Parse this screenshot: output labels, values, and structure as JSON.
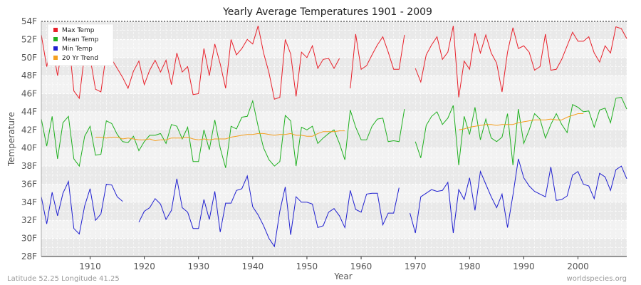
{
  "chart_data": {
    "type": "line",
    "title": "Yearly Average Temperatures 1901 - 2009",
    "xlabel": "Year",
    "ylabel": "Temperature",
    "xlim": [
      1901,
      2009
    ],
    "ylim": [
      28,
      54
    ],
    "x_ticks": [
      1910,
      1920,
      1930,
      1940,
      1950,
      1960,
      1970,
      1980,
      1990,
      2000
    ],
    "y_ticks": [
      "28F",
      "30F",
      "32F",
      "34F",
      "36F",
      "38F",
      "40F",
      "42F",
      "44F",
      "46F",
      "48F",
      "50F",
      "52F",
      "54F"
    ],
    "grid": true,
    "legend_position": "top-left",
    "years_start": 1901,
    "series": [
      {
        "name": "Max Temp",
        "color": "#e8202a",
        "values": [
          52.5,
          49.0,
          51.5,
          48.0,
          51.6,
          52.2,
          46.3,
          45.5,
          50.5,
          50.0,
          46.5,
          46.2,
          50.5,
          49.8,
          48.8,
          47.8,
          46.6,
          48.5,
          49.6,
          47.0,
          48.6,
          49.7,
          48.4,
          49.7,
          47.0,
          50.5,
          48.4,
          49.0,
          45.9,
          46.0,
          51.0,
          48.0,
          51.5,
          49.3,
          46.6,
          52.0,
          50.3,
          51.0,
          52.0,
          51.5,
          53.5,
          50.5,
          48.3,
          45.4,
          45.6,
          52.0,
          50.4,
          45.7,
          50.6,
          50.0,
          51.3,
          48.8,
          49.8,
          49.9,
          48.8,
          49.9,
          null,
          46.6,
          52.6,
          48.7,
          49.1,
          50.3,
          51.4,
          52.3,
          50.6,
          48.7,
          48.7,
          52.5,
          null,
          48.8,
          47.3,
          50.3,
          51.4,
          52.3,
          49.8,
          50.6,
          53.5,
          45.6,
          49.6,
          48.7,
          52.7,
          50.5,
          52.5,
          50.5,
          49.4,
          46.2,
          50.6,
          53.3,
          51.0,
          51.3,
          50.6,
          48.6,
          49.0,
          52.6,
          48.6,
          48.7,
          49.8,
          51.3,
          52.8,
          51.8,
          51.8,
          52.3,
          50.5,
          49.5,
          51.3,
          50.5,
          53.4,
          53.2,
          52.1
        ]
      },
      {
        "name": "Mean Temp",
        "color": "#20b020",
        "values": [
          43.2,
          40.2,
          43.5,
          38.8,
          42.8,
          43.5,
          38.8,
          38.0,
          41.3,
          42.4,
          39.2,
          39.3,
          43.0,
          42.7,
          41.5,
          40.7,
          40.6,
          41.3,
          39.7,
          40.7,
          41.4,
          41.4,
          41.6,
          40.5,
          42.6,
          42.4,
          41.0,
          42.3,
          38.5,
          38.5,
          42.0,
          39.8,
          43.1,
          40.0,
          37.8,
          42.4,
          42.1,
          43.4,
          43.5,
          45.2,
          42.4,
          40.0,
          38.7,
          38.0,
          38.5,
          43.6,
          43.0,
          38.0,
          42.3,
          42.0,
          42.4,
          40.5,
          41.1,
          41.6,
          42.0,
          40.5,
          38.7,
          44.2,
          42.3,
          40.9,
          40.9,
          42.4,
          43.2,
          43.3,
          40.7,
          40.8,
          40.7,
          44.3,
          null,
          40.7,
          38.9,
          42.5,
          43.5,
          44.0,
          42.6,
          43.3,
          44.7,
          38.1,
          43.5,
          41.5,
          44.5,
          40.9,
          43.2,
          41.1,
          40.7,
          41.2,
          43.8,
          38.1,
          44.3,
          40.5,
          42.0,
          43.8,
          43.2,
          41.1,
          42.6,
          43.8,
          42.6,
          41.7,
          44.8,
          44.5,
          44.0,
          44.1,
          42.3,
          44.2,
          44.4,
          42.8,
          45.5,
          45.6,
          44.3
        ]
      },
      {
        "name": "Min Temp",
        "color": "#2020d0",
        "values": [
          34.6,
          31.6,
          35.1,
          32.5,
          35.0,
          36.3,
          31.1,
          30.5,
          33.6,
          35.5,
          32.0,
          32.7,
          36.0,
          35.9,
          34.6,
          34.1,
          null,
          null,
          31.8,
          33.0,
          33.4,
          34.4,
          33.8,
          32.1,
          33.1,
          36.6,
          33.4,
          32.9,
          31.1,
          31.1,
          34.3,
          32.1,
          35.2,
          30.7,
          33.9,
          33.9,
          35.3,
          35.5,
          36.9,
          33.5,
          32.6,
          31.4,
          30.0,
          29.1,
          33.0,
          35.7,
          30.4,
          34.6,
          34.0,
          34.0,
          33.8,
          31.2,
          31.4,
          32.9,
          33.3,
          32.5,
          31.2,
          35.3,
          33.2,
          32.9,
          34.9,
          35.0,
          35.0,
          31.5,
          32.8,
          32.8,
          35.6,
          null,
          32.8,
          30.6,
          34.6,
          35.0,
          35.4,
          35.2,
          35.3,
          36.2,
          30.6,
          35.4,
          34.3,
          36.7,
          33.1,
          37.4,
          36.0,
          34.6,
          33.4,
          34.9,
          31.2,
          34.8,
          38.8,
          36.7,
          35.8,
          35.2,
          34.9,
          34.6,
          37.9,
          34.2,
          34.3,
          34.7,
          37.0,
          37.4,
          36.0,
          35.8,
          34.4,
          37.2,
          36.8,
          35.3,
          37.6,
          38.0,
          36.6
        ]
      },
      {
        "name": "20 Yr Trend",
        "color": "#f5a020",
        "values": [
          null,
          null,
          null,
          null,
          null,
          null,
          null,
          null,
          null,
          null,
          41.2,
          41.2,
          41.1,
          41.2,
          41.2,
          41.0,
          41.1,
          41.0,
          40.9,
          40.9,
          41.0,
          40.8,
          40.9,
          40.9,
          41.1,
          41.1,
          41.1,
          41.2,
          41.0,
          40.9,
          41.0,
          40.9,
          41.0,
          41.0,
          41.0,
          41.2,
          41.3,
          41.4,
          41.5,
          41.5,
          41.6,
          41.6,
          41.5,
          41.4,
          41.5,
          41.5,
          41.6,
          41.4,
          41.4,
          41.3,
          41.3,
          41.6,
          41.8,
          41.8,
          41.8,
          41.9,
          41.9,
          null,
          null,
          null,
          null,
          null,
          null,
          null,
          null,
          null,
          null,
          null,
          null,
          null,
          null,
          null,
          null,
          null,
          null,
          null,
          null,
          42.0,
          42.1,
          42.3,
          42.4,
          42.5,
          42.6,
          42.6,
          42.5,
          42.6,
          42.6,
          42.6,
          42.8,
          42.9,
          43.0,
          43.1,
          43.1,
          43.1,
          43.2,
          43.1,
          43.1,
          43.4,
          43.6,
          43.8,
          43.8
        ]
      }
    ]
  },
  "footer": {
    "left": "Latitude 52.25 Longitude 41.25",
    "right": "worldspecies.org"
  },
  "colors": {
    "plot_background": "#f2f2f2",
    "band": "#e9e9e9",
    "grid": "#ffffff"
  }
}
